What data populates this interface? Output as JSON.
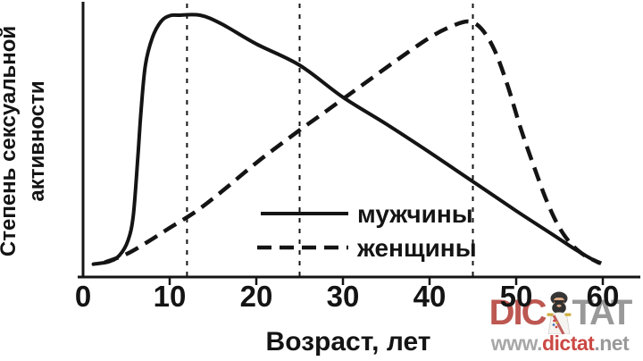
{
  "page": {
    "background": "#ffffff"
  },
  "chart_data": {
    "type": "line",
    "title": "",
    "xlabel": "Возраст, лет",
    "ylabel": "Степень сексуальной активности",
    "ylabel_lines": [
      "Степень сексуальной",
      "активности"
    ],
    "x_ticks": [
      0,
      10,
      20,
      30,
      40,
      50,
      60
    ],
    "xlim": [
      0,
      64
    ],
    "ylim": [
      0,
      1.05
    ],
    "grid": false,
    "axis_color": "#141414",
    "curve_color": "#141414",
    "guide_ages": [
      12,
      25,
      45
    ],
    "legend_position": "inside-bottom-center",
    "series": [
      {
        "name": "мужчины",
        "style": "solid",
        "points": [
          [
            1.2,
            0.005
          ],
          [
            3,
            0.015
          ],
          [
            4.2,
            0.04
          ],
          [
            5.2,
            0.1
          ],
          [
            5.8,
            0.2
          ],
          [
            6.3,
            0.42
          ],
          [
            6.7,
            0.62
          ],
          [
            7.2,
            0.8
          ],
          [
            8,
            0.91
          ],
          [
            9,
            0.975
          ],
          [
            10,
            0.998
          ],
          [
            11,
            1.0
          ],
          [
            13.5,
            1.0
          ],
          [
            16,
            0.965
          ],
          [
            20,
            0.885
          ],
          [
            25,
            0.8
          ],
          [
            30,
            0.672
          ],
          [
            35,
            0.565
          ],
          [
            40,
            0.452
          ],
          [
            45,
            0.335
          ],
          [
            50,
            0.218
          ],
          [
            54,
            0.128
          ],
          [
            57,
            0.06
          ],
          [
            59.5,
            0.01
          ]
        ]
      },
      {
        "name": "женщины",
        "style": "dashed",
        "points": [
          [
            2.5,
            0.012
          ],
          [
            5,
            0.045
          ],
          [
            7.5,
            0.095
          ],
          [
            10,
            0.15
          ],
          [
            13,
            0.215
          ],
          [
            16,
            0.295
          ],
          [
            20,
            0.41
          ],
          [
            24,
            0.515
          ],
          [
            28,
            0.615
          ],
          [
            32,
            0.715
          ],
          [
            36,
            0.815
          ],
          [
            40,
            0.91
          ],
          [
            42.5,
            0.955
          ],
          [
            44.5,
            0.975
          ],
          [
            46,
            0.945
          ],
          [
            47.5,
            0.86
          ],
          [
            49,
            0.72
          ],
          [
            50.5,
            0.55
          ],
          [
            52,
            0.4
          ],
          [
            53.5,
            0.26
          ],
          [
            55,
            0.15
          ],
          [
            56.5,
            0.08
          ],
          [
            58,
            0.038
          ],
          [
            59.8,
            0.008
          ]
        ]
      }
    ]
  },
  "watermark": {
    "brand_left": "DIC",
    "brand_right": "TAT",
    "brand_left_color": "#b5403a",
    "brand_right_color": "#8c8c8c",
    "figure_icon": "dictator-figure",
    "url": {
      "prefix": "www.",
      "domain": "dictat",
      "suffix": ".net",
      "prefix_color": "#9b9b9b",
      "domain_color": "#c4302b",
      "suffix_color": "#8c8c8c"
    }
  }
}
